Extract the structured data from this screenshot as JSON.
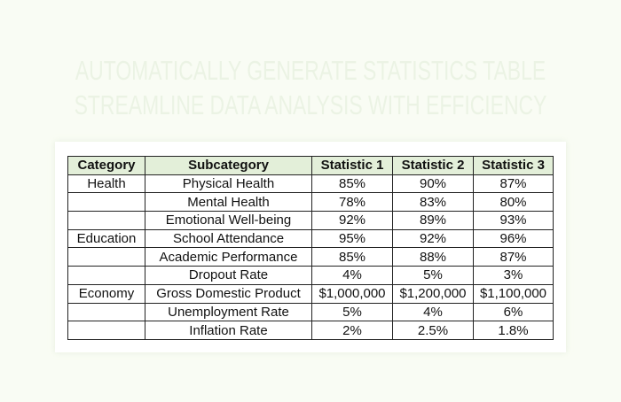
{
  "title": {
    "line1": "AUTOMATICALLY GENERATE STATISTICS TABLE",
    "line2": "STREAMLINE DATA ANALYSIS WITH EFFICIENCY"
  },
  "table": {
    "headers": [
      "Category",
      "Subcategory",
      "Statistic 1",
      "Statistic 2",
      "Statistic 3"
    ],
    "rows": [
      [
        "Health",
        "Physical Health",
        "85%",
        "90%",
        "87%"
      ],
      [
        "",
        "Mental Health",
        "78%",
        "83%",
        "80%"
      ],
      [
        "",
        "Emotional Well-being",
        "92%",
        "89%",
        "93%"
      ],
      [
        "Education",
        "School Attendance",
        "95%",
        "92%",
        "96%"
      ],
      [
        "",
        "Academic Performance",
        "85%",
        "88%",
        "87%"
      ],
      [
        "",
        "Dropout Rate",
        "4%",
        "5%",
        "3%"
      ],
      [
        "Economy",
        "Gross Domestic Product",
        "$1,000,000",
        "$1,200,000",
        "$1,100,000"
      ],
      [
        "",
        "Unemployment Rate",
        "5%",
        "4%",
        "6%"
      ],
      [
        "",
        "Inflation Rate",
        "2%",
        "2.5%",
        "1.8%"
      ]
    ]
  },
  "colors": {
    "header_bg": "#e3efd9",
    "title": "#ebf3e4",
    "background": "#f9fcf4"
  }
}
